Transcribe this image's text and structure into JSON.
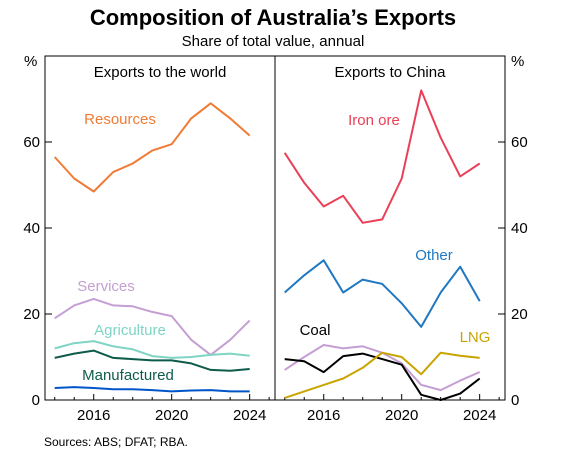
{
  "chart_data": {
    "type": "line",
    "title": "Composition of Australia’s Exports",
    "subtitle": "Share of total value, annual",
    "source": "Sources: ABS; DFAT; RBA.",
    "y_unit_left": "%",
    "y_unit_right": "%",
    "ylim": [
      0,
      80
    ],
    "yticks": [
      0,
      20,
      40,
      60
    ],
    "xlim": [
      2013.5,
      2025.3
    ],
    "xticks": [
      2016,
      2020,
      2024
    ],
    "panels": [
      {
        "title": "Exports to the world",
        "series": [
          {
            "name": "Resources",
            "color": "#f07b36",
            "x": [
              2014,
              2015,
              2016,
              2017,
              2018,
              2019,
              2020,
              2021,
              2022,
              2023,
              2024
            ],
            "y": [
              56.5,
              51.5,
              48.5,
              53,
              55,
              58,
              59.5,
              65.5,
              69,
              65.5,
              61.5
            ]
          },
          {
            "name": "Services",
            "color": "#c59fd3",
            "x": [
              2014,
              2015,
              2016,
              2017,
              2018,
              2019,
              2020,
              2021,
              2022,
              2023,
              2024
            ],
            "y": [
              19,
              22,
              23.5,
              22,
              21.8,
              20.5,
              19.5,
              14,
              10.5,
              14,
              18.5
            ]
          },
          {
            "name": "Agriculture",
            "color": "#7fd4c4",
            "x": [
              2014,
              2015,
              2016,
              2017,
              2018,
              2019,
              2020,
              2021,
              2022,
              2023,
              2024
            ],
            "y": [
              12,
              13.2,
              13.7,
              12.5,
              11.8,
              10.2,
              9.8,
              10,
              10.5,
              10.8,
              10.3
            ]
          },
          {
            "name": "Manufactured",
            "color": "#0d5c4b",
            "x": [
              2014,
              2015,
              2016,
              2017,
              2018,
              2019,
              2020,
              2021,
              2022,
              2023,
              2024
            ],
            "y": [
              9.8,
              10.8,
              11.5,
              9.8,
              9.5,
              9.2,
              9.2,
              8.5,
              7,
              6.8,
              7.2
            ]
          },
          {
            "name": "",
            "color": "#0055c8",
            "x": [
              2014,
              2015,
              2016,
              2017,
              2018,
              2019,
              2020,
              2021,
              2022,
              2023,
              2024
            ],
            "y": [
              2.8,
              3,
              2.8,
              2.5,
              2.5,
              2.3,
              2,
              2.2,
              2.3,
              2,
              2
            ]
          }
        ]
      },
      {
        "title": "Exports to China",
        "series": [
          {
            "name": "Iron ore",
            "color": "#e94058",
            "x": [
              2014,
              2015,
              2016,
              2017,
              2018,
              2019,
              2020,
              2021,
              2022,
              2023,
              2024
            ],
            "y": [
              57.5,
              50.5,
              45,
              47.5,
              41.2,
              42,
              51.5,
              72,
              61,
              52,
              55
            ]
          },
          {
            "name": "Other",
            "color": "#1f78c1",
            "x": [
              2014,
              2015,
              2016,
              2017,
              2018,
              2019,
              2020,
              2021,
              2022,
              2023,
              2024
            ],
            "y": [
              25,
              29,
              32.5,
              25,
              28,
              27,
              22.5,
              17,
              25,
              31,
              23
            ]
          },
          {
            "name": "",
            "color": "#c59fd3",
            "x": [
              2014,
              2015,
              2016,
              2017,
              2018,
              2019,
              2020,
              2021,
              2022,
              2023,
              2024
            ],
            "y": [
              7,
              10,
              12.8,
              12,
              12.5,
              11,
              8.5,
              3.5,
              2.3,
              4.5,
              6.5
            ]
          },
          {
            "name": "Coal",
            "color": "#000000",
            "x": [
              2014,
              2015,
              2016,
              2017,
              2018,
              2019,
              2020,
              2021,
              2022,
              2023,
              2024
            ],
            "y": [
              9.5,
              9,
              6.5,
              10.2,
              10.8,
              9.5,
              8.2,
              1.2,
              0,
              1.5,
              5
            ]
          },
          {
            "name": "LNG",
            "color": "#c9a400",
            "x": [
              2014,
              2015,
              2016,
              2017,
              2018,
              2019,
              2020,
              2021,
              2022,
              2023,
              2024
            ],
            "y": [
              0.5,
              2,
              3.5,
              5,
              7.5,
              11,
              10,
              6,
              11,
              10.3,
              9.8
            ]
          }
        ]
      }
    ]
  }
}
